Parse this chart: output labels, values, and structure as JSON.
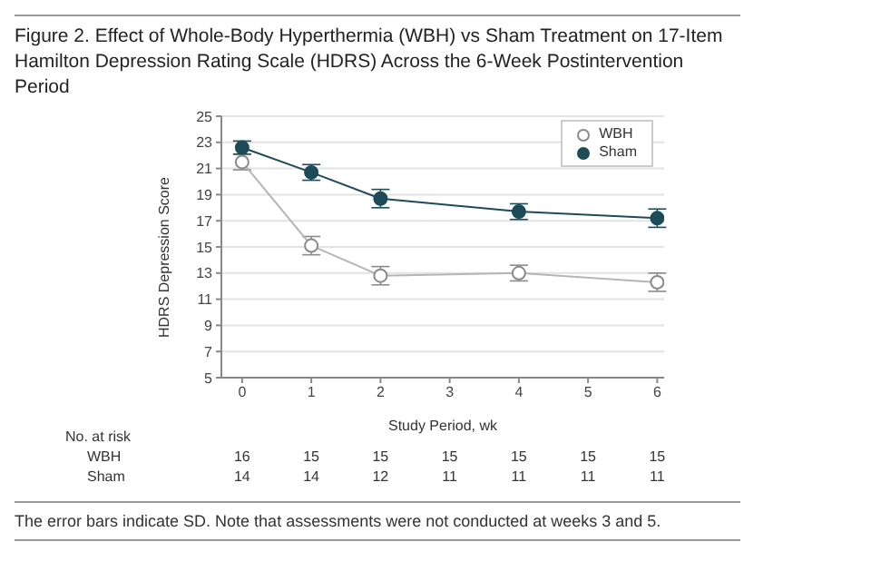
{
  "chart_data": {
    "type": "line",
    "title": "Figure 2. Effect of Whole-Body Hyperthermia (WBH) vs Sham Treatment on 17-Item Hamilton Depression Rating Scale (HDRS) Across the 6-Week Postintervention Period",
    "xlabel": "Study Period, wk",
    "ylabel": "HDRS Depression Score",
    "x": [
      0,
      1,
      2,
      4,
      6
    ],
    "series": [
      {
        "name": "WBH",
        "color": "#8a8a8a",
        "values": [
          21.5,
          15.1,
          12.8,
          13.0,
          12.3
        ],
        "errors": [
          0.6,
          0.7,
          0.7,
          0.6,
          0.7
        ]
      },
      {
        "name": "Sham",
        "color": "#1d4b57",
        "values": [
          22.6,
          20.7,
          18.7,
          17.7,
          17.2
        ],
        "errors": [
          0.5,
          0.6,
          0.7,
          0.6,
          0.7
        ]
      }
    ],
    "xlim": [
      -0.3,
      6.1
    ],
    "xticks": [
      0,
      1,
      2,
      3,
      4,
      5,
      6
    ],
    "ylim": [
      5,
      25
    ],
    "yticks": [
      5,
      7,
      9,
      11,
      13,
      15,
      17,
      19,
      21,
      23,
      25
    ],
    "grid": "y",
    "legend": "top right",
    "marker": "circle",
    "annotations": [
      "No. at risk",
      "WBH 16 15 15 15 15 15 15",
      "Sham 14 14 12 11 11 11 11",
      "The error bars indicate SD. Note that assessments were not conducted at weeks 3 and 5."
    ]
  }
}
